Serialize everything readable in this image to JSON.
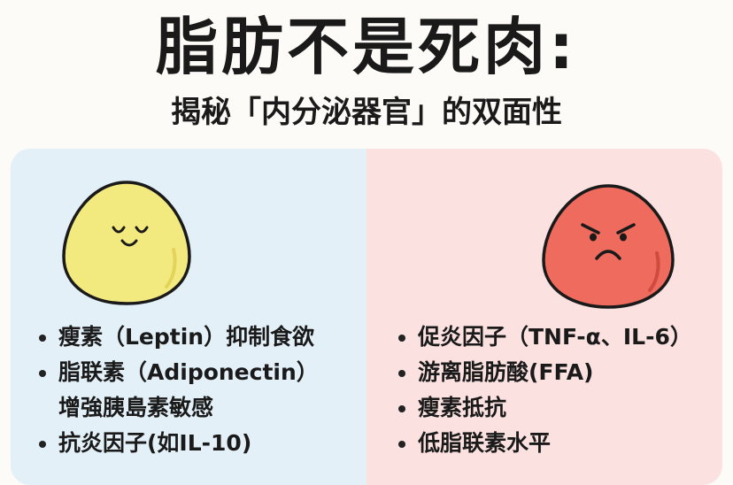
{
  "title": "脂肪不是死肉:",
  "subtitle": "揭秘「内分泌器官」的双面性",
  "colors": {
    "left_bg": "#e3f0f8",
    "right_bg": "#fbe2e1",
    "yellow_fat": "#f3ea7f",
    "red_fat": "#ee6b5e"
  },
  "left": {
    "icon": "happy-yellow-fat-cell",
    "items": [
      {
        "text": "瘦素（Leptin）抑制食欲"
      },
      {
        "text": "脂联素（Adiponectin）",
        "continuation": "增強胰島素敏感"
      },
      {
        "text": "抗炎因子(如IL-10)"
      }
    ]
  },
  "right": {
    "icon": "angry-red-fat-cell",
    "items": [
      {
        "text": "促炎因子（TNF-α、IL-6）"
      },
      {
        "text": "游离脂肪酸(FFA)"
      },
      {
        "text": "瘦素抵抗"
      },
      {
        "text": "低脂联素水平"
      }
    ]
  }
}
